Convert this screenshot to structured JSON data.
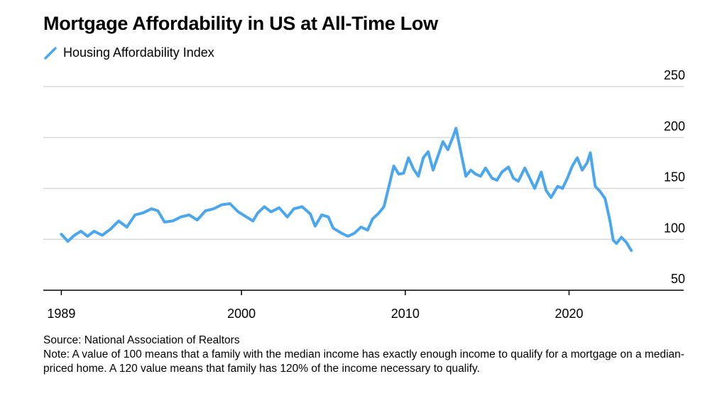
{
  "title": "Mortgage Affordability in US at All-Time Low",
  "legend": {
    "label": "Housing Affordability Index",
    "color": "#4aa7ee"
  },
  "source": "Source: National Association of Realtors",
  "note": "Note: A value of 100 means that a family with the median income has exactly enough income to qualify for a mortgage on a median-priced home. A 120 value means that family has 120% of the income necessary to qualify.",
  "chart_data": {
    "type": "line",
    "series": [
      {
        "name": "Housing Affordability Index",
        "color": "#4aa7ee",
        "points": [
          [
            1989.0,
            105
          ],
          [
            1989.4,
            98
          ],
          [
            1989.8,
            104
          ],
          [
            1990.2,
            108
          ],
          [
            1990.6,
            103
          ],
          [
            1991.0,
            108
          ],
          [
            1991.5,
            104
          ],
          [
            1992.0,
            110
          ],
          [
            1992.5,
            118
          ],
          [
            1993.0,
            112
          ],
          [
            1993.5,
            124
          ],
          [
            1994.0,
            126
          ],
          [
            1994.5,
            130
          ],
          [
            1994.9,
            128
          ],
          [
            1995.3,
            117
          ],
          [
            1995.8,
            118
          ],
          [
            1996.3,
            122
          ],
          [
            1996.8,
            124
          ],
          [
            1997.3,
            119
          ],
          [
            1997.8,
            128
          ],
          [
            1998.3,
            130
          ],
          [
            1998.8,
            134
          ],
          [
            1999.3,
            135
          ],
          [
            1999.8,
            127
          ],
          [
            2000.3,
            122
          ],
          [
            2000.7,
            118
          ],
          [
            2001.0,
            126
          ],
          [
            2001.4,
            132
          ],
          [
            2001.8,
            127
          ],
          [
            2002.3,
            131
          ],
          [
            2002.8,
            122
          ],
          [
            2003.2,
            130
          ],
          [
            2003.7,
            132
          ],
          [
            2004.2,
            125
          ],
          [
            2004.5,
            113
          ],
          [
            2004.9,
            124
          ],
          [
            2005.3,
            122
          ],
          [
            2005.6,
            111
          ],
          [
            2006.1,
            106
          ],
          [
            2006.5,
            103
          ],
          [
            2006.9,
            106
          ],
          [
            2007.3,
            112
          ],
          [
            2007.7,
            109
          ],
          [
            2008.0,
            120
          ],
          [
            2008.4,
            126
          ],
          [
            2008.7,
            132
          ],
          [
            2009.0,
            152
          ],
          [
            2009.3,
            172
          ],
          [
            2009.6,
            164
          ],
          [
            2009.9,
            165
          ],
          [
            2010.2,
            180
          ],
          [
            2010.5,
            169
          ],
          [
            2010.8,
            162
          ],
          [
            2011.1,
            180
          ],
          [
            2011.4,
            186
          ],
          [
            2011.7,
            168
          ],
          [
            2012.0,
            182
          ],
          [
            2012.3,
            196
          ],
          [
            2012.6,
            188
          ],
          [
            2012.9,
            200
          ],
          [
            2013.1,
            209
          ],
          [
            2013.4,
            185
          ],
          [
            2013.7,
            162
          ],
          [
            2014.0,
            168
          ],
          [
            2014.3,
            164
          ],
          [
            2014.6,
            162
          ],
          [
            2014.9,
            170
          ],
          [
            2015.3,
            160
          ],
          [
            2015.6,
            158
          ],
          [
            2015.9,
            166
          ],
          [
            2016.3,
            171
          ],
          [
            2016.6,
            160
          ],
          [
            2016.9,
            157
          ],
          [
            2017.3,
            170
          ],
          [
            2017.6,
            160
          ],
          [
            2017.9,
            150
          ],
          [
            2018.3,
            166
          ],
          [
            2018.6,
            148
          ],
          [
            2018.9,
            141
          ],
          [
            2019.3,
            152
          ],
          [
            2019.6,
            150
          ],
          [
            2019.9,
            160
          ],
          [
            2020.2,
            172
          ],
          [
            2020.5,
            180
          ],
          [
            2020.8,
            168
          ],
          [
            2021.1,
            175
          ],
          [
            2021.3,
            185
          ],
          [
            2021.6,
            152
          ],
          [
            2021.9,
            147
          ],
          [
            2022.2,
            140
          ],
          [
            2022.5,
            118
          ],
          [
            2022.7,
            99
          ],
          [
            2022.9,
            96
          ],
          [
            2023.2,
            102
          ],
          [
            2023.5,
            97
          ],
          [
            2023.8,
            89
          ]
        ]
      }
    ],
    "x_ticks": [
      {
        "value": 1989,
        "label": "1989"
      },
      {
        "value": 2000,
        "label": "2000"
      },
      {
        "value": 2010,
        "label": "2010"
      },
      {
        "value": 2020,
        "label": "2020"
      }
    ],
    "y_ticks": [
      50,
      100,
      150,
      200,
      250
    ],
    "xlim": [
      1987.9,
      2027
    ],
    "ylim": [
      50,
      250
    ],
    "grid": true,
    "legend_position": "top-left",
    "y_axis_side": "right"
  }
}
